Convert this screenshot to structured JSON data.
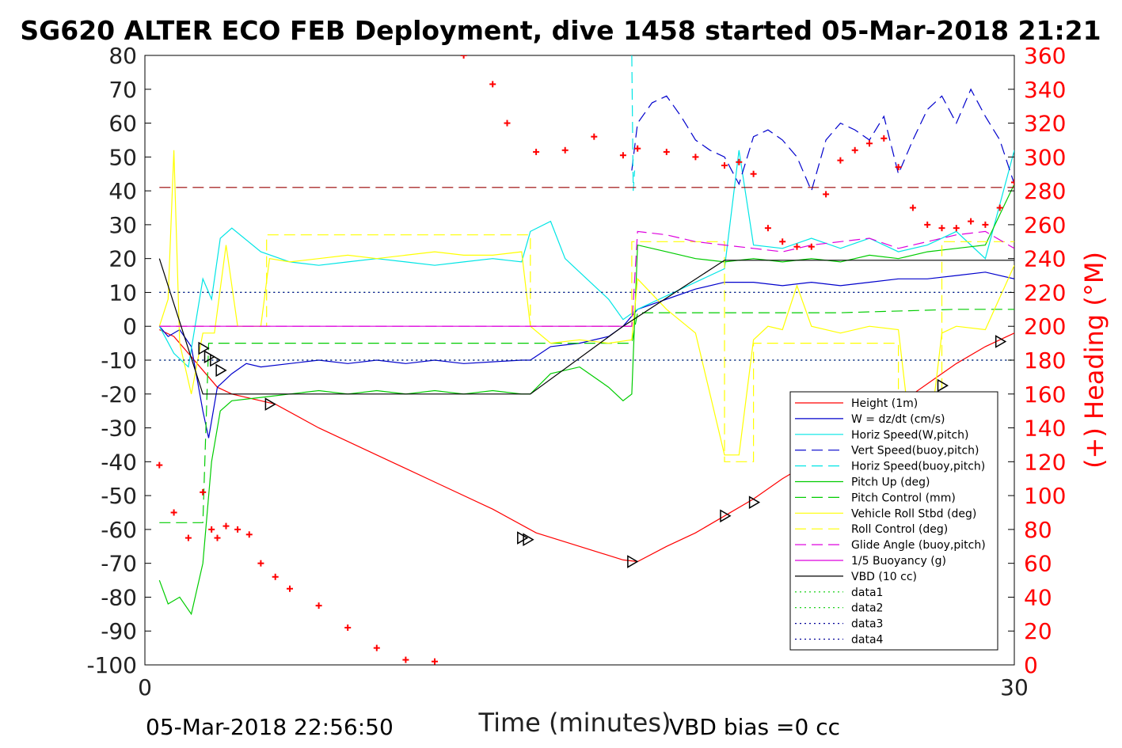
{
  "chart_data": {
    "type": "line",
    "title": "SG620 ALTER ECO FEB Deployment, dive 1458 started 05-Mar-2018 21:21",
    "xlabel": "Time (minutes)",
    "ylabel": "",
    "y2label": "(+) Heading (°M)",
    "xlim": [
      0,
      30
    ],
    "ylim": [
      -100,
      80
    ],
    "y2lim": [
      0,
      360
    ],
    "x_ticks": [
      "0",
      "30"
    ],
    "y_ticks": [
      "80",
      "70",
      "60",
      "50",
      "40",
      "30",
      "20",
      "10",
      "0",
      "-10",
      "-20",
      "-30",
      "-40",
      "-50",
      "-60",
      "-70",
      "-80",
      "-90",
      "-100"
    ],
    "y2_ticks": [
      "360",
      "340",
      "320",
      "300",
      "280",
      "260",
      "240",
      "220",
      "200",
      "180",
      "160",
      "140",
      "120",
      "100",
      "80",
      "60",
      "40",
      "20",
      "0"
    ],
    "footer_left": "05-Mar-2018 22:56:50",
    "footer_right": "VBD bias =0 cc",
    "legend_position": "bottom-right",
    "colors": {
      "heading": "#ff0000",
      "axis_right": "#ff0000"
    },
    "legend": [
      {
        "name": "Height (1m)",
        "color": "#ff0000",
        "style": "solid"
      },
      {
        "name": "W = dz/dt (cm/s)",
        "color": "#0000cc",
        "style": "solid"
      },
      {
        "name": "Horiz Speed(W,pitch)",
        "color": "#00e5e5",
        "style": "solid"
      },
      {
        "name": "Vert Speed(buoy,pitch)",
        "color": "#0000cc",
        "style": "dashed"
      },
      {
        "name": "Horiz Speed(buoy,pitch)",
        "color": "#00e5e5",
        "style": "dashed"
      },
      {
        "name": "Pitch Up (deg)",
        "color": "#00cc00",
        "style": "solid"
      },
      {
        "name": "Pitch Control (mm)",
        "color": "#00cc00",
        "style": "dashed"
      },
      {
        "name": "Vehicle Roll Stbd (deg)",
        "color": "#ffff00",
        "style": "solid"
      },
      {
        "name": "Roll Control (deg)",
        "color": "#ffff00",
        "style": "dashed"
      },
      {
        "name": "Glide Angle (buoy,pitch)",
        "color": "#dd00dd",
        "style": "dashed"
      },
      {
        "name": "1/5 Buoyancy (g)",
        "color": "#dd00dd",
        "style": "solid"
      },
      {
        "name": "VBD (10 cc)",
        "color": "#000000",
        "style": "solid"
      },
      {
        "name": "data1",
        "color": "#00cc00",
        "style": "dotted"
      },
      {
        "name": "data2",
        "color": "#00cc00",
        "style": "dotted"
      },
      {
        "name": "data3",
        "color": "#000099",
        "style": "dotted"
      },
      {
        "name": "data4",
        "color": "#000099",
        "style": "dotted"
      }
    ],
    "series": [
      {
        "name": "Height (1m)",
        "color": "#ff0000",
        "dash": "",
        "axis": "left",
        "x": [
          0.5,
          1.0,
          1.5,
          2.0,
          2.5,
          3.0,
          4.0,
          4.5,
          6,
          8,
          10,
          12,
          13.5,
          15,
          16.5,
          17.0,
          18,
          19,
          20,
          21,
          22,
          23,
          24,
          25,
          26,
          27,
          28,
          29,
          30
        ],
        "y": [
          -1,
          -3,
          -8,
          -13,
          -18,
          -20,
          -22,
          -23,
          -30,
          -38,
          -46,
          -54,
          -61,
          -65,
          -69,
          -69.5,
          -65,
          -61,
          -56,
          -51,
          -45,
          -40,
          -35,
          -29,
          -23,
          -17,
          -11,
          -6,
          -2
        ]
      },
      {
        "name": "W = dz/dt (cm/s)",
        "color": "#0000cc",
        "dash": "",
        "axis": "left",
        "x": [
          0.5,
          0.8,
          1.2,
          1.6,
          2.0,
          2.2,
          2.5,
          3,
          3.5,
          4,
          5,
          6,
          7,
          8,
          9,
          10,
          11,
          12,
          13,
          13.3,
          14,
          15,
          16,
          16.5,
          17,
          18,
          19,
          20,
          21,
          22,
          23,
          24,
          25,
          26,
          27,
          28,
          29,
          30
        ],
        "y": [
          0,
          -3,
          -1,
          -6,
          -25,
          -33,
          -18,
          -14,
          -11,
          -12,
          -11,
          -10,
          -11,
          -10,
          -11,
          -10,
          -11,
          -10.5,
          -10,
          -10,
          -6,
          -5,
          -3,
          0,
          5,
          8,
          11,
          13,
          13,
          12,
          13,
          12,
          13,
          14,
          14,
          15,
          16,
          14
        ]
      },
      {
        "name": "Horiz Speed(W,pitch)",
        "color": "#00e5e5",
        "dash": "",
        "axis": "left",
        "x": [
          0.5,
          1.0,
          1.5,
          2.0,
          2.3,
          2.6,
          3.0,
          4,
          5,
          6,
          7,
          8,
          9,
          10,
          11,
          12,
          13,
          13.3,
          14,
          14.5,
          15,
          16,
          16.5,
          17,
          18,
          19,
          20,
          20.5,
          21,
          22,
          23,
          24,
          25,
          26,
          27,
          28,
          29,
          30
        ],
        "y": [
          0,
          -8,
          -12,
          14,
          8,
          26,
          29,
          22,
          19,
          18,
          19,
          20,
          19,
          18,
          19,
          20,
          19,
          28,
          31,
          20,
          16,
          8,
          2,
          5,
          9,
          13,
          17,
          52,
          24,
          23,
          26,
          23,
          26,
          22,
          24,
          28,
          20,
          52
        ]
      },
      {
        "name": "Vert Speed(buoy,pitch)",
        "color": "#0000cc",
        "dash": "14,7",
        "axis": "left",
        "x": [
          16.8,
          17.0,
          17.5,
          18,
          18.5,
          19,
          19.5,
          20,
          20.5,
          21,
          21.5,
          22,
          22.5,
          23,
          23.5,
          24,
          24.5,
          25,
          25.5,
          26,
          26.5,
          27,
          27.5,
          28,
          28.5,
          29,
          29.5,
          30
        ],
        "y": [
          46,
          60,
          66,
          68,
          62,
          55,
          52,
          50,
          42,
          56,
          58,
          55,
          50,
          40,
          55,
          60,
          58,
          55,
          62,
          45,
          55,
          64,
          68,
          60,
          70,
          62,
          55,
          42
        ]
      },
      {
        "name": "Horiz Speed(buoy,pitch)",
        "color": "#00e5e5",
        "dash": "14,7",
        "axis": "left",
        "x": [
          16.8,
          16.85,
          16.9
        ],
        "y": [
          80,
          40,
          46
        ]
      },
      {
        "name": "Pitch Up (deg)",
        "color": "#00cc00",
        "dash": "",
        "axis": "left",
        "x": [
          0.5,
          0.8,
          1.2,
          1.6,
          2.0,
          2.3,
          2.6,
          3.0,
          4,
          5,
          6,
          7,
          8,
          9,
          10,
          11,
          12,
          13,
          13.3,
          14,
          15,
          16,
          16.5,
          16.8,
          17,
          18,
          19,
          20,
          21,
          22,
          23,
          24,
          25,
          26,
          27,
          28,
          29,
          30
        ],
        "y": [
          -75,
          -82,
          -80,
          -85,
          -70,
          -40,
          -25,
          -22,
          -21,
          -20,
          -19,
          -20,
          -19,
          -20,
          -19,
          -20,
          -19,
          -20,
          -20,
          -14,
          -12,
          -18,
          -22,
          -20,
          24,
          22,
          20,
          19,
          20,
          19,
          20,
          19,
          21,
          20,
          22,
          23,
          24,
          42
        ]
      },
      {
        "name": "Pitch Control (mm)",
        "color": "#00cc00",
        "dash": "14,7",
        "axis": "left",
        "x": [
          0.5,
          2.0,
          2.2,
          4,
          8,
          12,
          13.3,
          16.8,
          17,
          20,
          24,
          28,
          30
        ],
        "y": [
          -58,
          -58,
          -5,
          -5,
          -5,
          -5,
          -5,
          -5,
          4,
          4,
          4,
          5,
          5
        ]
      },
      {
        "name": "Vehicle Roll Stbd (deg)",
        "color": "#ffff00",
        "dash": "",
        "axis": "left",
        "x": [
          0.5,
          0.8,
          1.0,
          1.2,
          1.6,
          2.0,
          2.4,
          2.8,
          3.2,
          4,
          4.3,
          5,
          6,
          7,
          8,
          9,
          10,
          11,
          12,
          13,
          13.3,
          14,
          15,
          16,
          16.8,
          17,
          18,
          19,
          20,
          20.5,
          21,
          21.5,
          22,
          22.5,
          23,
          24,
          25,
          26,
          26.5,
          27,
          27.5,
          28,
          29,
          30
        ],
        "y": [
          0,
          8,
          52,
          -5,
          -20,
          -2,
          -2,
          24,
          0,
          0,
          20,
          19,
          20,
          21,
          20,
          21,
          22,
          21,
          21,
          22,
          0,
          -5,
          -4,
          -5,
          -4,
          14,
          5,
          -2,
          -38,
          -38,
          -4,
          0,
          -1,
          12,
          0,
          -2,
          0,
          -1,
          -38,
          -38,
          -2,
          0,
          -1,
          18
        ]
      },
      {
        "name": "Roll Control (deg)",
        "color": "#ffff00",
        "dash": "14,7",
        "axis": "left",
        "x": [
          0.5,
          3.5,
          4.2,
          4.2,
          13.3,
          13.3,
          16.8,
          16.8,
          20,
          20,
          21,
          21,
          26,
          26,
          27.5,
          27.5,
          30
        ],
        "y": [
          0,
          0,
          0,
          27,
          27,
          0,
          0,
          25,
          25,
          -40,
          -40,
          -5,
          -5,
          -40,
          -40,
          25,
          25
        ]
      },
      {
        "name": "Glide Angle (buoy,pitch)",
        "color": "#dd00dd",
        "dash": "14,7",
        "axis": "left",
        "x": [
          0.5,
          13.3,
          16.8,
          17,
          18,
          19,
          20,
          21,
          22,
          23,
          24,
          25,
          26,
          27,
          28,
          29,
          30
        ],
        "y": [
          0,
          0,
          0,
          28,
          27,
          25,
          24,
          23,
          22,
          24,
          25,
          26,
          23,
          25,
          27,
          28,
          23
        ]
      },
      {
        "name": "1/5 Buoyancy (g)",
        "color": "#dd00dd",
        "dash": "",
        "axis": "left",
        "x": [
          0.5,
          13.3,
          16.8
        ],
        "y": [
          0,
          0,
          0
        ]
      },
      {
        "name": "VBD (10 cc)",
        "color": "#000000",
        "dash": "",
        "axis": "left",
        "x": [
          0.5,
          2.0,
          13.3,
          16.5,
          20,
          30
        ],
        "y": [
          20,
          -20,
          -20,
          0,
          19.5,
          19.5
        ]
      },
      {
        "name": "data1",
        "color": "#00cc00",
        "dash": "2,4",
        "axis": "left",
        "x": [
          0.5,
          30
        ],
        "y": [
          10,
          10
        ]
      },
      {
        "name": "data2",
        "color": "#00cc00",
        "dash": "2,4",
        "axis": "left",
        "x": [
          0.5,
          30
        ],
        "y": [
          -10,
          -10
        ]
      },
      {
        "name": "data3",
        "color": "#000099",
        "dash": "2,4",
        "axis": "left",
        "x": [
          0.5,
          30
        ],
        "y": [
          10,
          10
        ]
      },
      {
        "name": "data4",
        "color": "#000099",
        "dash": "2,4",
        "axis": "left",
        "x": [
          0.5,
          30
        ],
        "y": [
          -10,
          -10
        ]
      },
      {
        "name": "",
        "color": "#990000",
        "dash": "14,7",
        "axis": "left",
        "x": [
          0.5,
          30
        ],
        "y": [
          41,
          41
        ]
      }
    ],
    "height_markers": {
      "x": [
        2.0,
        2.2,
        2.4,
        2.6,
        4.3,
        13.0,
        13.2,
        16.8,
        20.0,
        21.0,
        23.5,
        24.5,
        26.5,
        27.5,
        29.5
      ],
      "y": [
        -6.5,
        -9,
        -10,
        -13,
        -23,
        -62.5,
        -63,
        -69.5,
        -56,
        -52,
        -40.5,
        -35,
        -23.5,
        -17.5,
        -4.5
      ]
    },
    "heading": {
      "x": [
        0.5,
        1.0,
        1.5,
        2.0,
        2.3,
        2.5,
        2.8,
        3.2,
        3.6,
        4.0,
        4.5,
        5,
        6,
        7,
        8,
        9,
        10,
        11,
        12,
        12.5,
        13.5,
        14.5,
        15.5,
        16.5,
        17,
        18,
        19,
        20,
        20.5,
        21,
        21.5,
        22,
        22.5,
        23,
        23.5,
        24,
        24.5,
        25,
        25.5,
        26,
        26.5,
        27,
        27.5,
        28,
        28.5,
        29,
        29.5,
        30
      ],
      "y": [
        118,
        90,
        75,
        102,
        80,
        75,
        82,
        80,
        77,
        60,
        52,
        45,
        35,
        22,
        10,
        3,
        2,
        360,
        343,
        320,
        303,
        304,
        312,
        301,
        305,
        303,
        300,
        295,
        297,
        290,
        258,
        250,
        247,
        247,
        278,
        298,
        304,
        308,
        311,
        294,
        270,
        260,
        258,
        258,
        262,
        260,
        270,
        285
      ]
    }
  }
}
